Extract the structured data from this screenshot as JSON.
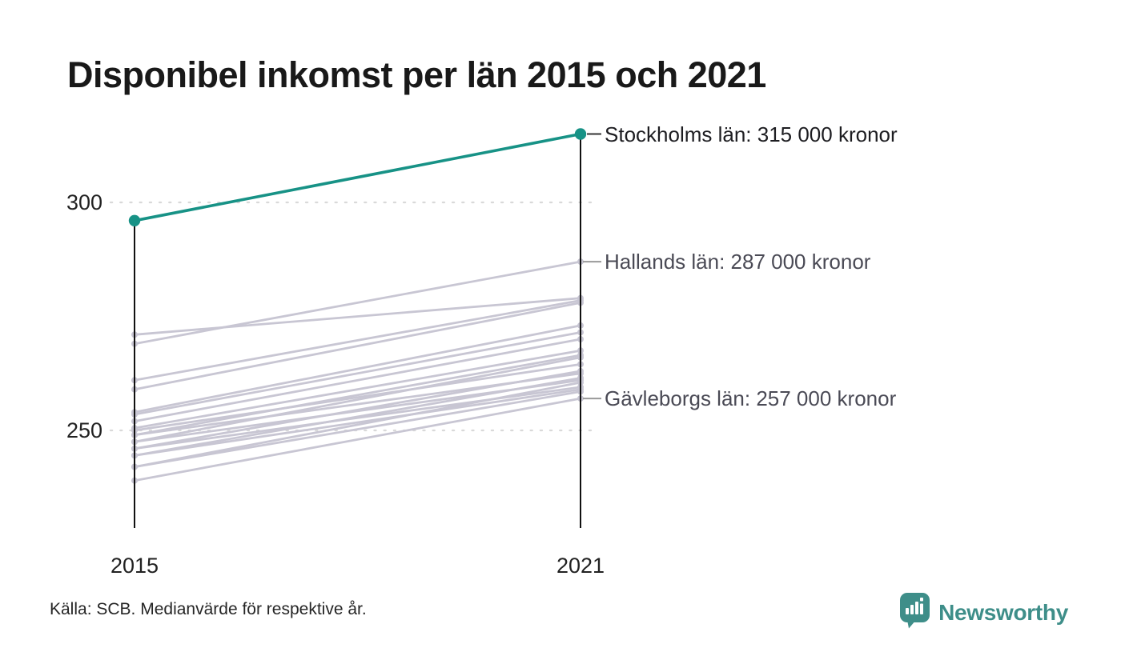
{
  "title": "Disponibel inkomst per län 2015 och 2021",
  "source_note": "Källa: SCB. Medianvärde för respektive år.",
  "brand": {
    "name": "Newsworthy",
    "color": "#3e8e89",
    "icon": "bar-chart-pin-icon"
  },
  "colors": {
    "highlight_line": "#179286",
    "muted_line": "#c8c6d3",
    "axis": "#111111",
    "gridline": "#d9d9d9",
    "annotation_muted_text": "#4a4a55",
    "annotation_highlight_text": "#1d1d21",
    "connector_highlight": "#333333",
    "connector_muted": "#999999"
  },
  "chart_data": {
    "type": "line",
    "subtype": "slopegraph",
    "title": "Disponibel inkomst per län 2015 och 2021",
    "x_labels": [
      "2015",
      "2021"
    ],
    "y_axis": {
      "ticks": [
        {
          "label": "300",
          "value": 300
        },
        {
          "label": "250",
          "value": 250
        }
      ],
      "ylim": [
        228,
        318
      ],
      "grid": "dotted"
    },
    "legend": "none",
    "annotations": [
      {
        "text": "Stockholms län: 315 000 kronor",
        "value": 315,
        "style": "highlight"
      },
      {
        "text": "Hallands län: 287 000 kronor",
        "value": 287,
        "style": "muted"
      },
      {
        "text": "Gävleborgs län: 257 000 kronor",
        "value": 257,
        "style": "muted"
      }
    ],
    "series": [
      {
        "name": "Stockholms län",
        "values": [
          296,
          315
        ],
        "highlight": true
      },
      {
        "name": "Hallands län",
        "values": [
          269,
          287
        ],
        "highlight": false
      },
      {
        "values": [
          271,
          279
        ],
        "highlight": false
      },
      {
        "values": [
          261,
          278.5
        ],
        "highlight": false
      },
      {
        "values": [
          259,
          278
        ],
        "highlight": false
      },
      {
        "values": [
          254,
          273
        ],
        "highlight": false
      },
      {
        "values": [
          253.5,
          271.5
        ],
        "highlight": false
      },
      {
        "values": [
          252,
          270
        ],
        "highlight": false
      },
      {
        "values": [
          250.5,
          267.5
        ],
        "highlight": false
      },
      {
        "values": [
          249,
          266.5
        ],
        "highlight": false
      },
      {
        "values": [
          247.5,
          266
        ],
        "highlight": false
      },
      {
        "values": [
          250,
          264.5
        ],
        "highlight": false
      },
      {
        "values": [
          246,
          263
        ],
        "highlight": false
      },
      {
        "values": [
          249,
          262.5
        ],
        "highlight": false
      },
      {
        "values": [
          244.5,
          261.5
        ],
        "highlight": false
      },
      {
        "values": [
          247.5,
          261
        ],
        "highlight": false
      },
      {
        "values": [
          242,
          260.5
        ],
        "highlight": false
      },
      {
        "values": [
          246,
          259.5
        ],
        "highlight": false
      },
      {
        "values": [
          244.5,
          259
        ],
        "highlight": false
      },
      {
        "values": [
          242,
          258.5
        ],
        "highlight": false
      },
      {
        "name": "Gävleborgs län",
        "values": [
          239,
          257
        ],
        "highlight": false
      }
    ]
  }
}
